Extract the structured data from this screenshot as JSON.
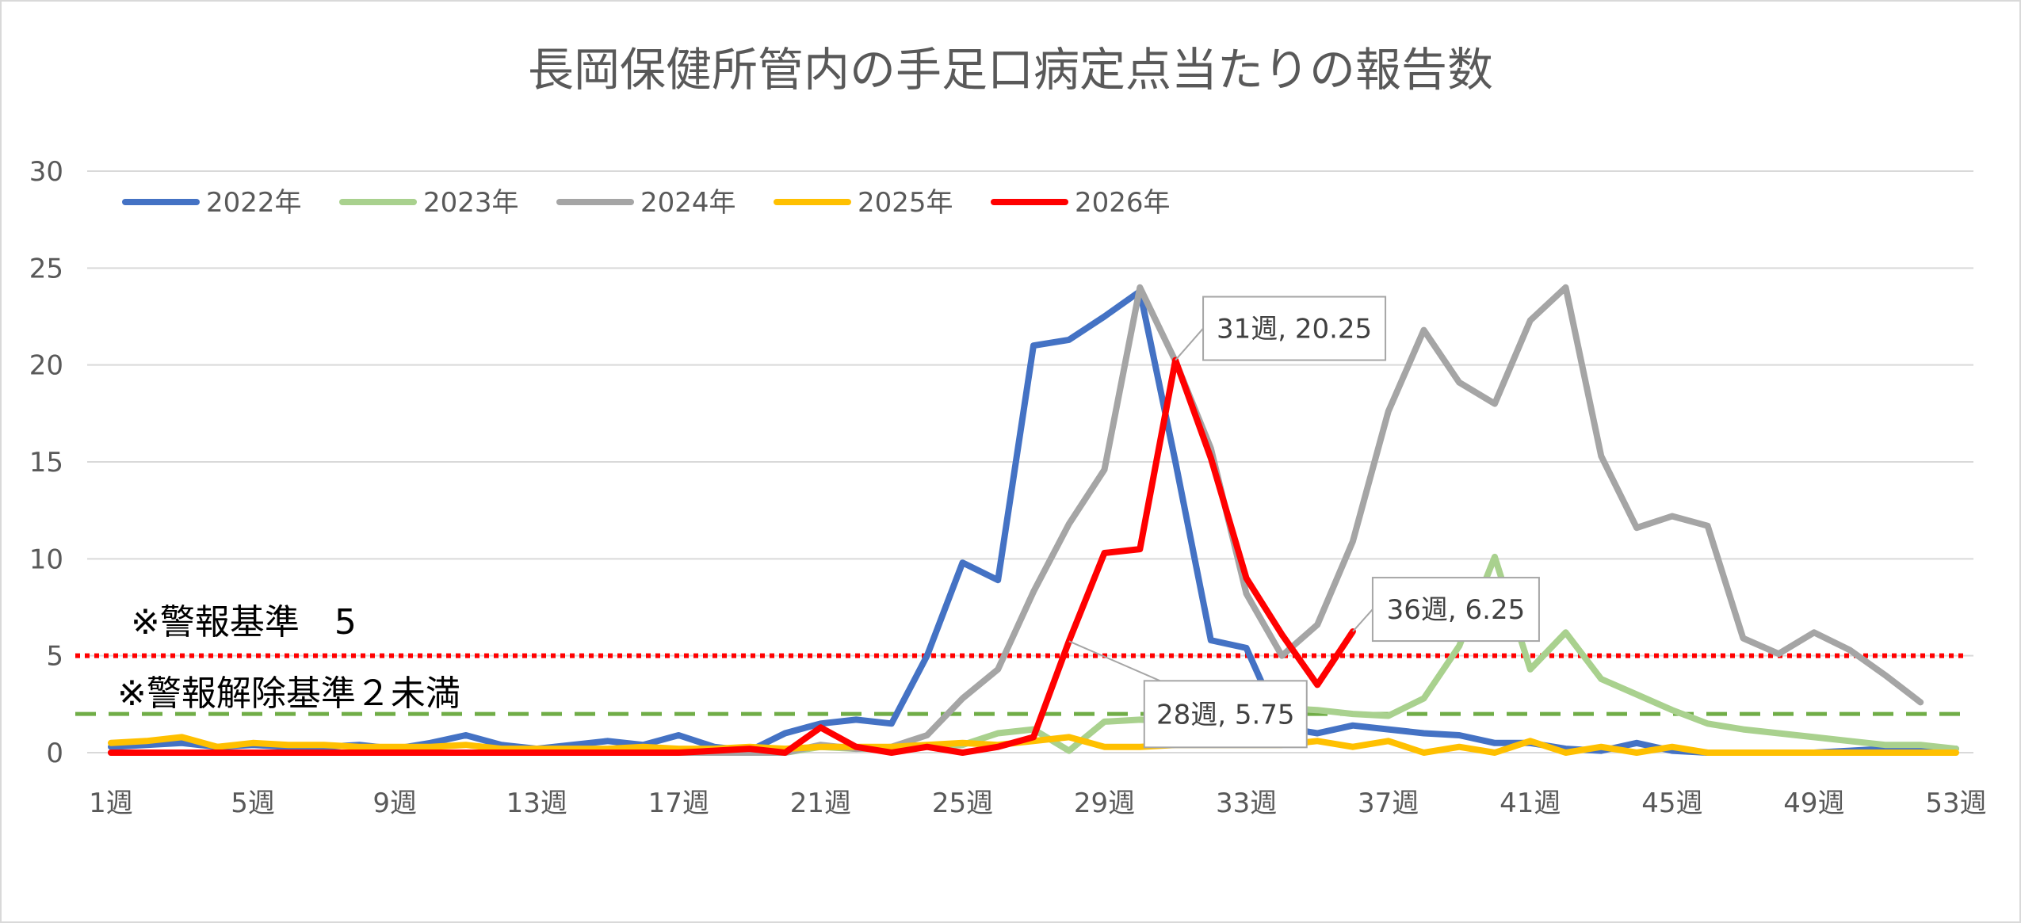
{
  "chart_data": {
    "type": "line",
    "title": "長岡保健所管内の手足口病定点当たりの報告数",
    "ylim": [
      0,
      30
    ],
    "yticks": [
      0,
      5,
      10,
      15,
      20,
      25,
      30
    ],
    "xlim": [
      1,
      53
    ],
    "xticks": [
      "1週",
      "5週",
      "9週",
      "13週",
      "17週",
      "21週",
      "25週",
      "29週",
      "33週",
      "37週",
      "41週",
      "45週",
      "49週",
      "53週"
    ],
    "x": [
      1,
      2,
      3,
      4,
      5,
      6,
      7,
      8,
      9,
      10,
      11,
      12,
      13,
      14,
      15,
      16,
      17,
      18,
      19,
      20,
      21,
      22,
      23,
      24,
      25,
      26,
      27,
      28,
      29,
      30,
      31,
      32,
      33,
      34,
      35,
      36,
      37,
      38,
      39,
      40,
      41,
      42,
      43,
      44,
      45,
      46,
      47,
      48,
      49,
      50,
      51,
      52,
      53
    ],
    "grid": true,
    "legend_position": "top-left",
    "series": [
      {
        "name": "2022年",
        "color": "#4472C4",
        "values": [
          0.3,
          0.4,
          0.5,
          0.3,
          0.4,
          0.3,
          0.3,
          0.4,
          0.2,
          0.5,
          0.9,
          0.4,
          0.2,
          0.4,
          0.6,
          0.4,
          0.9,
          0.3,
          0.1,
          1.0,
          1.5,
          1.7,
          1.5,
          5.0,
          9.8,
          8.9,
          21.0,
          21.3,
          22.5,
          23.8,
          15.0,
          5.8,
          5.4,
          1.3,
          1.0,
          1.4,
          1.2,
          1.0,
          0.9,
          0.5,
          0.5,
          0.2,
          0.1,
          0.5,
          0.1,
          0,
          0,
          0,
          0,
          0.1,
          0.2,
          0.2,
          0.2
        ]
      },
      {
        "name": "2023年",
        "color": "#A9D18E",
        "values": [
          0,
          0,
          0,
          0,
          0,
          0,
          0,
          0,
          0,
          0,
          0,
          0,
          0,
          0,
          0,
          0,
          0,
          0,
          0,
          0,
          0.3,
          0.2,
          0.2,
          0.3,
          0.4,
          1.0,
          1.2,
          0.1,
          1.6,
          1.7,
          1.6,
          1.7,
          3.2,
          2.3,
          2.2,
          2.0,
          1.9,
          2.8,
          5.5,
          10.1,
          4.3,
          6.2,
          3.8,
          3.0,
          2.2,
          1.5,
          1.2,
          1.0,
          0.8,
          0.6,
          0.4,
          0.4,
          0.2
        ]
      },
      {
        "name": "2024年",
        "color": "#A5A5A5",
        "values": [
          0,
          0,
          0,
          0,
          0,
          0,
          0,
          0,
          0,
          0,
          0,
          0,
          0,
          0,
          0,
          0,
          0,
          0,
          0,
          0,
          0.4,
          0.2,
          0.3,
          0.9,
          2.8,
          4.3,
          8.3,
          11.8,
          14.6,
          24.0,
          20.2,
          15.7,
          8.2,
          5.0,
          6.6,
          10.9,
          17.6,
          21.8,
          19.1,
          18.0,
          22.3,
          24.0,
          15.3,
          11.6,
          12.2,
          11.7,
          5.9,
          5.1,
          6.2,
          5.3,
          4.0,
          2.6,
          null
        ]
      },
      {
        "name": "2025年",
        "color": "#FFC000",
        "values": [
          0.5,
          0.6,
          0.8,
          0.3,
          0.5,
          0.4,
          0.4,
          0.3,
          0.3,
          0.3,
          0.4,
          0.2,
          0.2,
          0.2,
          0.2,
          0.3,
          0.2,
          0.2,
          0.3,
          0.2,
          0.3,
          0.3,
          0.3,
          0.4,
          0.5,
          0.4,
          0.6,
          0.8,
          0.3,
          0.3,
          0.4,
          0.4,
          0.4,
          0.4,
          0.6,
          0.3,
          0.6,
          0,
          0.3,
          0,
          0.6,
          0,
          0.3,
          0,
          0.3,
          0,
          0,
          0,
          0,
          0,
          0,
          0,
          0
        ]
      },
      {
        "name": "2026年",
        "color": "#FF0000",
        "values": [
          0,
          0,
          0,
          0,
          0,
          0,
          0,
          0,
          0,
          0,
          0,
          0,
          0,
          0,
          0,
          0,
          0,
          0.1,
          0.2,
          0,
          1.3,
          0.3,
          0,
          0.3,
          0,
          0.3,
          0.8,
          5.75,
          10.3,
          10.5,
          20.25,
          15.2,
          9.0,
          6.1,
          3.5,
          6.25,
          null,
          null,
          null,
          null,
          null,
          null,
          null,
          null,
          null,
          null,
          null,
          null,
          null,
          null,
          null,
          null,
          null
        ]
      }
    ],
    "reference_lines": [
      {
        "label": "※警報基準　5",
        "value": 5,
        "color": "#FF0000",
        "style": "dotted"
      },
      {
        "label": "※警報解除基準２未満",
        "value": 2,
        "color": "#70AD47",
        "style": "dashed"
      }
    ],
    "annotations": [
      {
        "text": "31週, 20.25",
        "x": 31,
        "y": 20.25
      },
      {
        "text": "28週, 5.75",
        "x": 28,
        "y": 5.75
      },
      {
        "text": "36週, 6.25",
        "x": 36,
        "y": 6.25
      }
    ]
  }
}
